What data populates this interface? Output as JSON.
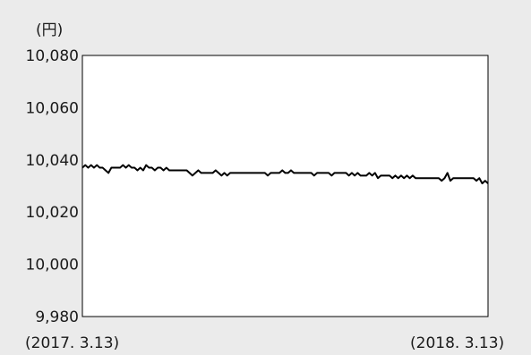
{
  "chart_data": {
    "type": "line",
    "unit": "(円)",
    "ylim": [
      9980,
      10080
    ],
    "y_ticks": [
      "10,080",
      "10,060",
      "10,040",
      "10,020",
      "10,000",
      "9,980"
    ],
    "y_tick_values": [
      10080,
      10060,
      10040,
      10020,
      10000,
      9980
    ],
    "x_start_label": "(2017. 3.13)",
    "x_end_label": "(2018. 3.13)",
    "grid": false,
    "legend": "none",
    "line_color": "#000000",
    "background_color": "#ebebeb",
    "plot_background_color": "#ffffff",
    "series": [
      {
        "values": [
          10037,
          10038,
          10037,
          10038,
          10037,
          10038,
          10037,
          10037,
          10036,
          10035,
          10037,
          10037,
          10037,
          10037,
          10038,
          10037,
          10038,
          10037,
          10037,
          10036,
          10037,
          10036,
          10038,
          10037,
          10037,
          10036,
          10037,
          10037,
          10036,
          10037,
          10036,
          10036,
          10036,
          10036,
          10036,
          10036,
          10036,
          10035,
          10034,
          10035,
          10036,
          10035,
          10035,
          10035,
          10035,
          10035,
          10036,
          10035,
          10034,
          10035,
          10034,
          10035,
          10035,
          10035,
          10035,
          10035,
          10035,
          10035,
          10035,
          10035,
          10035,
          10035,
          10035,
          10035,
          10034,
          10035,
          10035,
          10035,
          10035,
          10036,
          10035,
          10035,
          10036,
          10035,
          10035,
          10035,
          10035,
          10035,
          10035,
          10035,
          10034,
          10035,
          10035,
          10035,
          10035,
          10035,
          10034,
          10035,
          10035,
          10035,
          10035,
          10035,
          10034,
          10035,
          10034,
          10035,
          10034,
          10034,
          10034,
          10035,
          10034,
          10035,
          10033,
          10034,
          10034,
          10034,
          10034,
          10033,
          10034,
          10033,
          10034,
          10033,
          10034,
          10033,
          10034,
          10033,
          10033,
          10033,
          10033,
          10033,
          10033,
          10033,
          10033,
          10033,
          10032,
          10033,
          10035,
          10032,
          10033,
          10033,
          10033,
          10033,
          10033,
          10033,
          10033,
          10033,
          10032,
          10033,
          10031,
          10032,
          10031
        ]
      }
    ]
  }
}
